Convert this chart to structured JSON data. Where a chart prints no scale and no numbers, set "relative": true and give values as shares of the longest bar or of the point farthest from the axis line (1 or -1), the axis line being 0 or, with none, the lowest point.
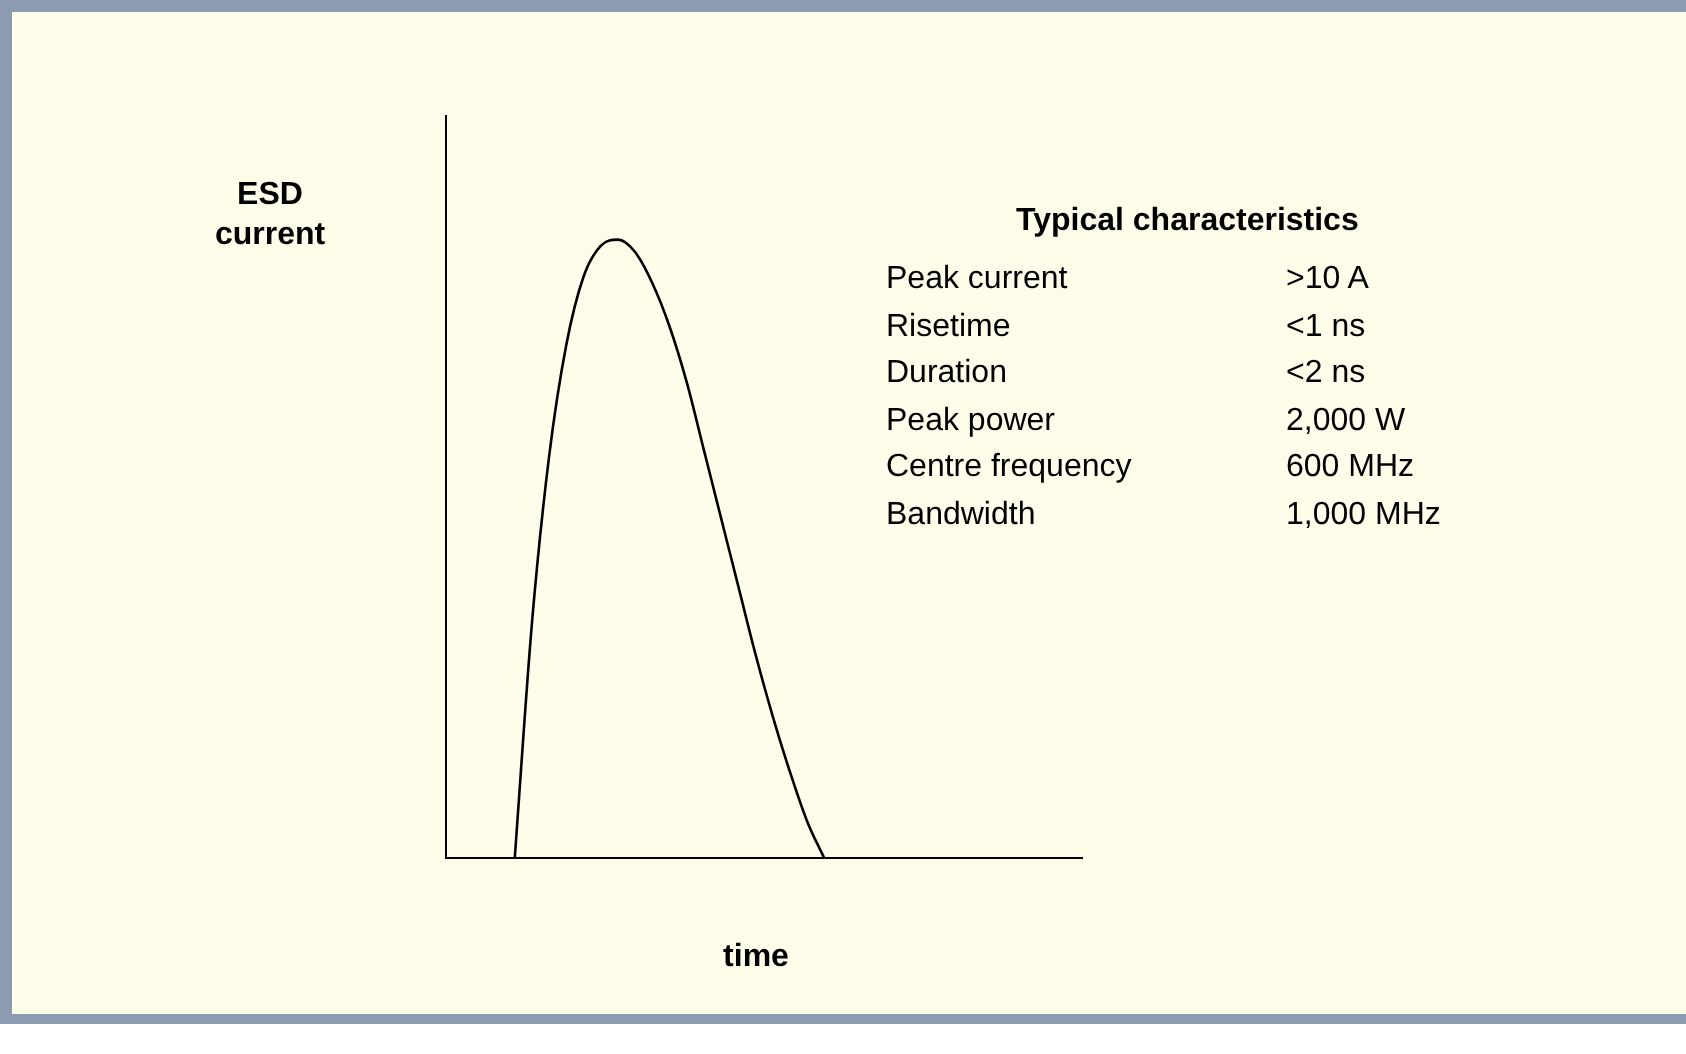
{
  "chart_data": {
    "type": "line",
    "relative": true,
    "xlabel": "time",
    "ylabel": "ESD current",
    "color": "#000000",
    "marker": "none",
    "line_style": "solid",
    "categories": [
      null,
      null,
      null,
      null,
      null,
      null,
      null,
      null,
      null,
      null,
      null,
      null,
      null,
      null,
      null,
      null,
      null,
      null,
      null,
      null,
      null,
      null,
      null,
      null,
      null,
      null,
      null,
      null,
      null,
      null,
      null,
      null,
      null,
      null,
      null,
      null,
      null,
      null
    ],
    "values": [
      null,
      null,
      null,
      null,
      0,
      0.38,
      0.65,
      0.83,
      0.94,
      0.99,
      1,
      0.98,
      0.93,
      0.86,
      0.77,
      0.66,
      0.55,
      0.44,
      0.33,
      0.23,
      0.14,
      0.06,
      0,
      null,
      null,
      null,
      null,
      null,
      null,
      null,
      null,
      null,
      null,
      null,
      null,
      null,
      null,
      null
    ],
    "annotations": [
      "Typical characteristics",
      "Peak current",
      ">10 A",
      "Risetime",
      "<1 ns",
      "Duration",
      "<2 ns",
      "Peak power",
      "2,000 W",
      "Centre frequency",
      "600 MHz",
      "Bandwidth",
      "1,000 MHz"
    ]
  }
}
